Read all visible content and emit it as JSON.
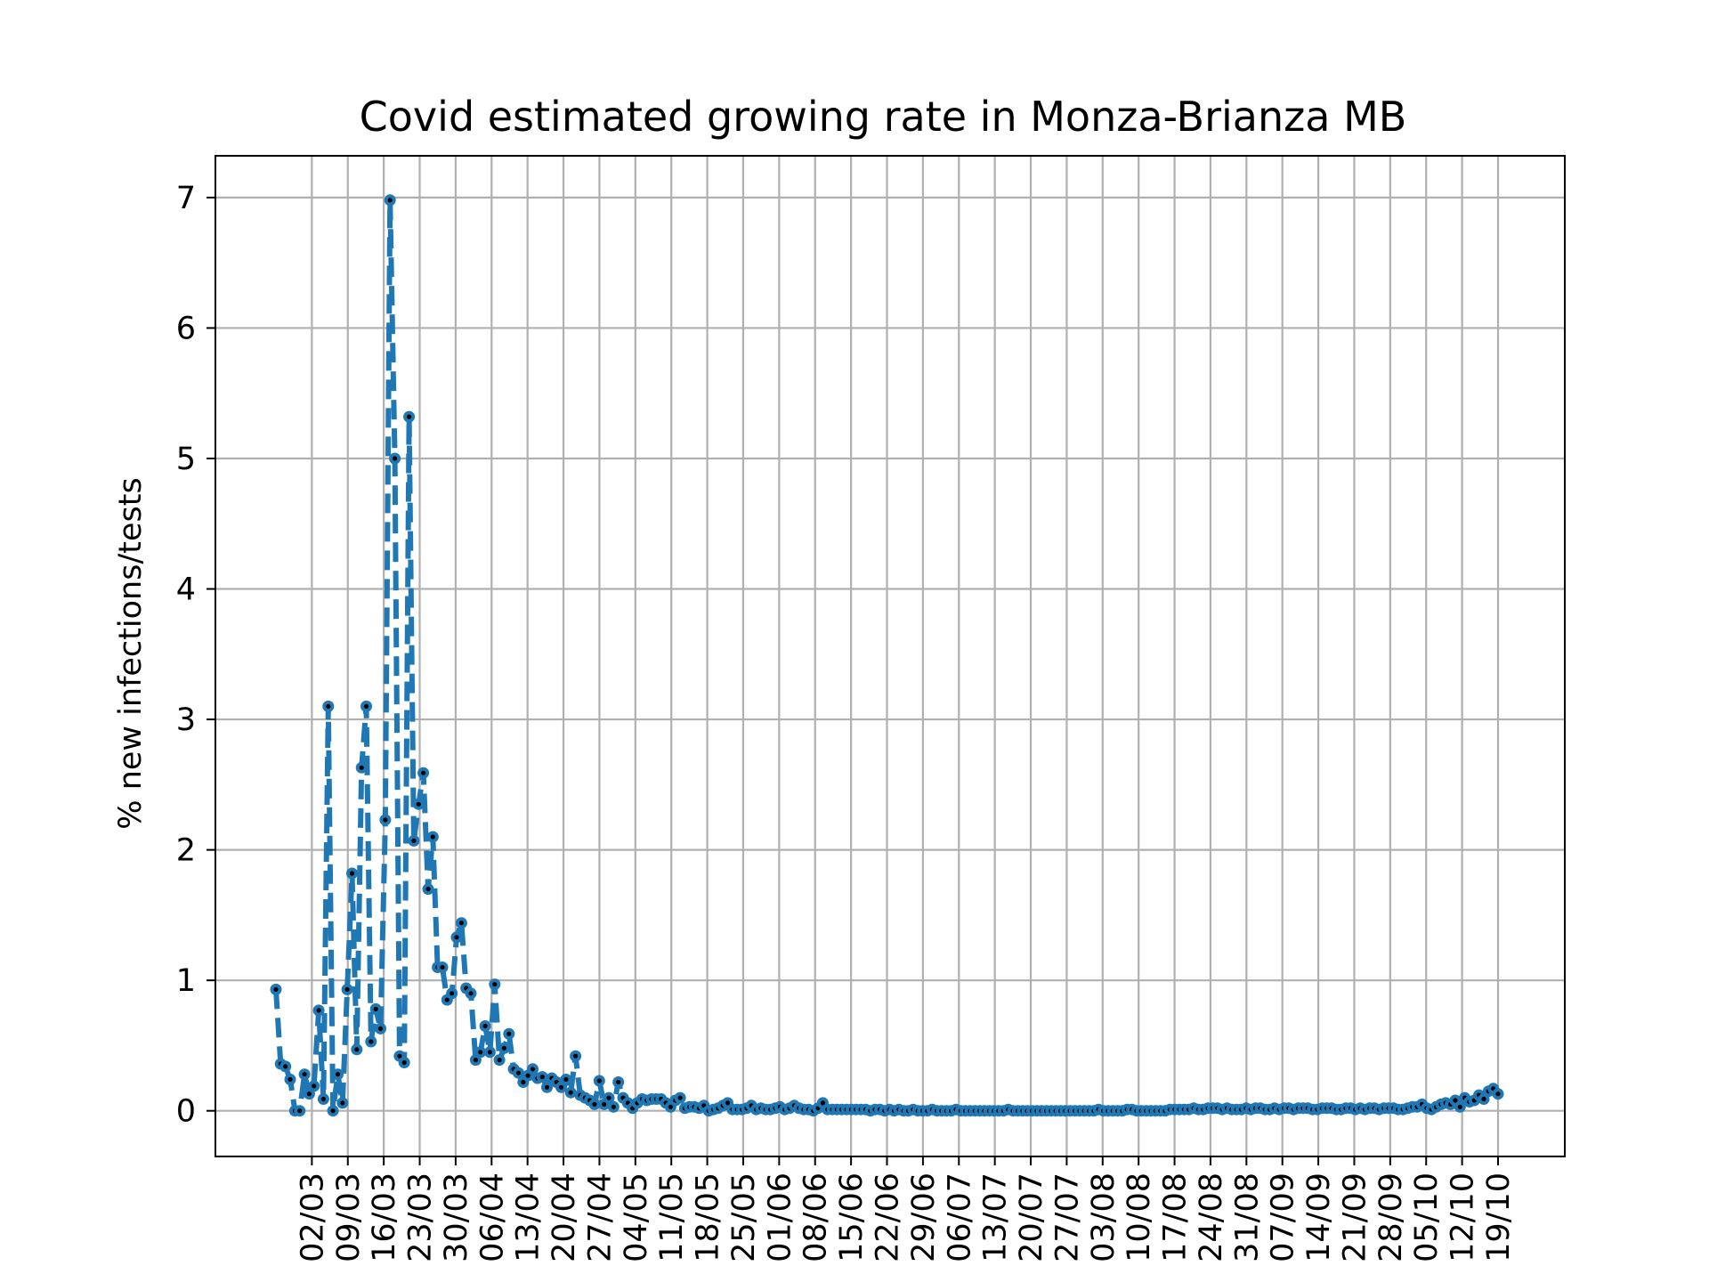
{
  "chart_data": {
    "type": "line",
    "title": "Covid estimated growing rate in Monza-Brianza MB",
    "xlabel": "",
    "ylabel": "% new infections/tests",
    "ylim": [
      -0.35,
      7.32
    ],
    "yticks": [
      0,
      1,
      2,
      3,
      4,
      5,
      6,
      7
    ],
    "x_tick_labels": [
      "02/03",
      "09/03",
      "16/03",
      "23/03",
      "30/03",
      "06/04",
      "13/04",
      "20/04",
      "27/04",
      "04/05",
      "11/05",
      "18/05",
      "25/05",
      "01/06",
      "08/06",
      "15/06",
      "22/06",
      "29/06",
      "06/07",
      "13/07",
      "20/07",
      "27/07",
      "03/08",
      "10/08",
      "17/08",
      "24/08",
      "31/08",
      "07/09",
      "14/09",
      "21/09",
      "28/09",
      "05/10",
      "12/10",
      "19/10"
    ],
    "x_start": "2020-02-24",
    "x_end": "2020-10-19",
    "grid": true,
    "series_style": {
      "color": "#1f77b4",
      "line": "dashed",
      "marker": "dot"
    },
    "series": [
      {
        "values": [
          0.93,
          0.36,
          0.34,
          0.24,
          0.0,
          0.0,
          0.28,
          0.13,
          0.19,
          0.77,
          0.09,
          3.1,
          0.0,
          0.28,
          0.06,
          0.93,
          1.82,
          0.47,
          2.63,
          3.1,
          0.53,
          0.78,
          0.63,
          2.23,
          6.98,
          5.0,
          0.42,
          0.37,
          5.32,
          2.07,
          2.35,
          2.59,
          1.7,
          2.1,
          1.1,
          1.1,
          0.85,
          0.9,
          1.33,
          1.44,
          0.94,
          0.9,
          0.39,
          0.45,
          0.65,
          0.45,
          0.97,
          0.39,
          0.48,
          0.59,
          0.32,
          0.29,
          0.22,
          0.27,
          0.32,
          0.25,
          0.26,
          0.18,
          0.25,
          0.22,
          0.18,
          0.24,
          0.14,
          0.42,
          0.12,
          0.1,
          0.08,
          0.05,
          0.23,
          0.05,
          0.1,
          0.03,
          0.22,
          0.1,
          0.06,
          0.02,
          0.06,
          0.09,
          0.08,
          0.09,
          0.09,
          0.09,
          0.06,
          0.03,
          0.08,
          0.1,
          0.02,
          0.03,
          0.03,
          0.02,
          0.04,
          0.0,
          0.01,
          0.02,
          0.04,
          0.06,
          0.01,
          0.01,
          0.01,
          0.02,
          0.04,
          0.01,
          0.02,
          0.01,
          0.01,
          0.02,
          0.03,
          0.01,
          0.02,
          0.04,
          0.02,
          0.01,
          0.01,
          0.0,
          0.02,
          0.06,
          0.01,
          0.01,
          0.01,
          0.01,
          0.01,
          0.01,
          0.01,
          0.01,
          0.01,
          0.0,
          0.01,
          0.01,
          0.0,
          0.01,
          0.0,
          0.01,
          0.0,
          0.0,
          0.01,
          0.0,
          0.0,
          0.0,
          0.01,
          0.0,
          0.0,
          0.0,
          0.0,
          0.01,
          0.0,
          0.0,
          0.0,
          0.0,
          0.0,
          0.0,
          0.0,
          0.0,
          0.0,
          0.0,
          0.01,
          0.0,
          0.0,
          0.0,
          0.0,
          0.0,
          0.0,
          0.0,
          0.0,
          0.0,
          0.0,
          0.0,
          0.0,
          0.0,
          0.0,
          0.0,
          0.0,
          0.0,
          0.0,
          0.01,
          0.0,
          0.0,
          0.0,
          0.0,
          0.0,
          0.01,
          0.01,
          0.0,
          0.0,
          0.0,
          0.0,
          0.0,
          0.0,
          0.0,
          0.01,
          0.01,
          0.01,
          0.01,
          0.01,
          0.02,
          0.01,
          0.01,
          0.02,
          0.02,
          0.02,
          0.01,
          0.02,
          0.01,
          0.01,
          0.01,
          0.02,
          0.01,
          0.02,
          0.02,
          0.01,
          0.01,
          0.02,
          0.01,
          0.02,
          0.02,
          0.01,
          0.02,
          0.02,
          0.02,
          0.01,
          0.01,
          0.02,
          0.02,
          0.02,
          0.01,
          0.01,
          0.02,
          0.02,
          0.01,
          0.02,
          0.01,
          0.02,
          0.02,
          0.01,
          0.02,
          0.02,
          0.02,
          0.01,
          0.01,
          0.02,
          0.03,
          0.03,
          0.05,
          0.02,
          0.01,
          0.03,
          0.05,
          0.06,
          0.05,
          0.08,
          0.03,
          0.1,
          0.07,
          0.08,
          0.12,
          0.09,
          0.15,
          0.17,
          0.13
        ]
      }
    ]
  }
}
